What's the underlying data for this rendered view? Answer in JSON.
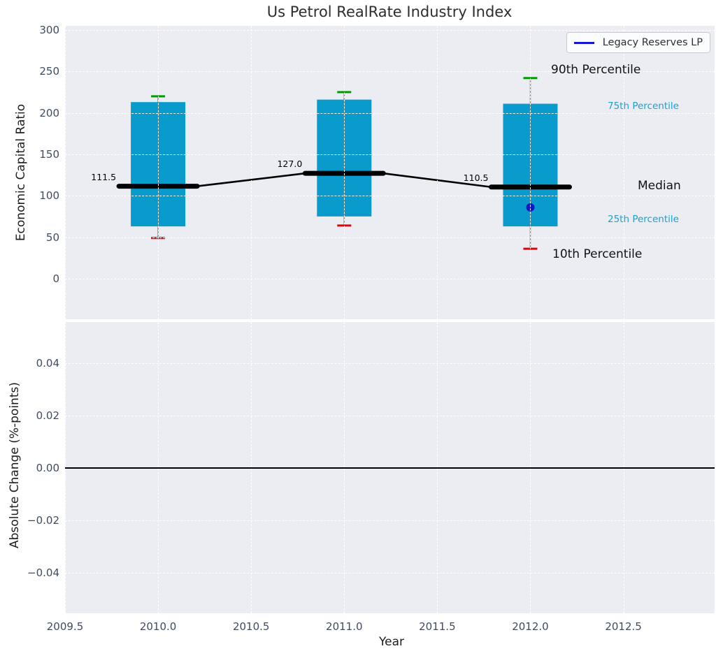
{
  "figure": {
    "title": "Us Petrol RealRate Industry Index",
    "xlabel": "Year",
    "top_ylabel": "Economic Capital Ratio",
    "bottom_ylabel": "Absolute Change (%-points)",
    "legend": {
      "label": "Legacy Reserves LP"
    },
    "labels": {
      "p90": "90th Percentile",
      "p75": "75th Percentile",
      "median": "Median",
      "p25": "25th Percentile",
      "p10": "10th Percentile"
    }
  },
  "chart_data": {
    "type": "boxplot",
    "title": "Us Petrol RealRate Industry Index",
    "xlabel": "Year",
    "xlim": [
      2009.5,
      2012.99
    ],
    "xticks": [
      2009.5,
      2010.0,
      2010.5,
      2011.0,
      2011.5,
      2012.0,
      2012.5
    ],
    "xtick_labels": [
      "2009.5",
      "2010.0",
      "2010.5",
      "2011.0",
      "2011.5",
      "2012.0",
      "2012.5"
    ],
    "grid": true,
    "legend_entries": [
      "Legacy Reserves LP"
    ],
    "subplots": [
      {
        "ylabel": "Economic Capital Ratio",
        "ylim": [
          -49,
          305
        ],
        "yticks": [
          0,
          50,
          100,
          150,
          200,
          250,
          300
        ],
        "ytick_labels": [
          "0",
          "50",
          "100",
          "150",
          "200",
          "250",
          "300"
        ],
        "boxes": [
          {
            "x": 2010,
            "p10": 49,
            "p25": 63,
            "median": 111.5,
            "p75": 213,
            "p90": 220
          },
          {
            "x": 2011,
            "p10": 64,
            "p25": 75,
            "median": 127.0,
            "p75": 216,
            "p90": 225
          },
          {
            "x": 2012,
            "p10": 36,
            "p25": 63,
            "median": 110.5,
            "p75": 211,
            "p90": 242
          }
        ],
        "median_line": {
          "x": [
            2010,
            2011,
            2012
          ],
          "y": [
            111.5,
            127.0,
            110.5
          ]
        },
        "median_annotations": [
          "111.5",
          "127.0",
          "110.5"
        ],
        "scatter": [
          {
            "name": "Legacy Reserves LP",
            "x": 2012,
            "y": 86
          }
        ]
      },
      {
        "ylabel": "Absolute Change (%-points)",
        "ylim": [
          -0.0556,
          0.0556
        ],
        "ytick_values": [
          0.04,
          0.02,
          0.0,
          -0.02,
          -0.04
        ],
        "ytick_labels": [
          "0.04",
          "0.02",
          "0.00",
          "−0.02",
          "−0.04"
        ],
        "zero_line": 0.0
      }
    ]
  },
  "colors": {
    "box_fill": "#0a9bcd",
    "whisker": "#777777",
    "cap_90": "#009b00",
    "cap_10": "#e60000",
    "median_line": "#000000",
    "scatter_dot": "#1414cd",
    "legend_line": "#1414d2",
    "axes_bg": "#ebedf2",
    "percentile_label_accent": "#1b9fd4",
    "tick_label": "#3d4c63"
  }
}
